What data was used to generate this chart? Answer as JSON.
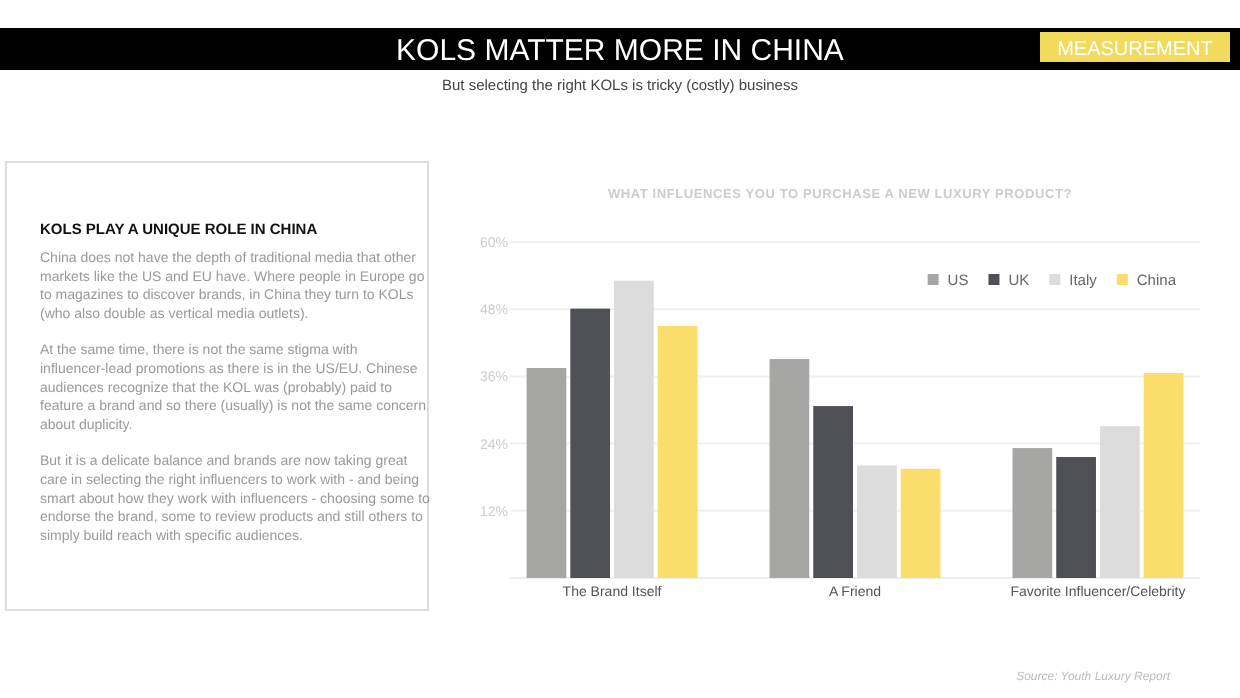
{
  "chart_data": [
    {
      "type": "other",
      "title": "KOLS MATTER MORE IN CHINA",
      "subtitle": "But selecting the right KOLs is tricky (costly) business",
      "annotations": [
        "MEASUREMENT"
      ]
    },
    {
      "type": "other",
      "title": "KOLS PLAY A UNIQUE ROLE IN CHINA",
      "annotations": [
        "China does not have the depth of traditional media that other markets like the US and EU have. Where people in Europe go to magazines to discover brands, in China they turn to KOLs (who also double as vertical media outlets).",
        "At the same time, there is not the same stigma with influencer-lead promotions as there is in the US/EU. Chinese audiences recognize that the KOL was (probably) paid to feature a brand and so there (usually) is not the same concern about duplicity.",
        "But it is a delicate balance and brands are now taking great care in selecting the right influencers to work with - and being smart about how they work with influencers - choosing some to endorse the brand, some to review products and still others to simply build reach with specific audiences."
      ]
    },
    {
      "type": "bar",
      "title": "WHAT INFLUENCES YOU TO PURCHASE A NEW LUXURY PRODUCT?",
      "categories": [
        "The Brand Itself",
        "A Friend",
        "Favorite Influencer/Celebrity"
      ],
      "series": [
        {
          "name": "US",
          "color": "#a6a7a5",
          "values": [
            37.5,
            39.1,
            23.2
          ]
        },
        {
          "name": "UK",
          "color": "#4e5056",
          "values": [
            48.1,
            30.7,
            21.6
          ]
        },
        {
          "name": "Italy",
          "color": "#dcdcdc",
          "values": [
            53.1,
            20.1,
            27.1
          ]
        },
        {
          "name": "China",
          "color": "#fadd6b",
          "values": [
            45.0,
            19.5,
            36.6
          ]
        }
      ],
      "ylim": [
        0,
        60
      ],
      "yticks": [
        {
          "value": 12,
          "label": "12%"
        },
        {
          "value": 24,
          "label": "24%"
        },
        {
          "value": 36,
          "label": "36%"
        },
        {
          "value": 48,
          "label": "48%"
        },
        {
          "value": 60,
          "label": "60%"
        }
      ],
      "grid": "y",
      "legend": "top right",
      "annotations": [
        "Source: Youth Luxury Report"
      ]
    }
  ]
}
